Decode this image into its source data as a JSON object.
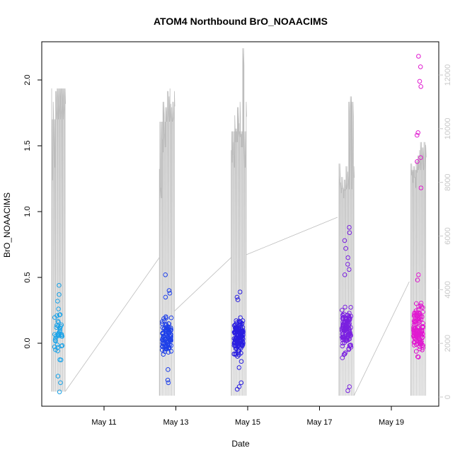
{
  "chart_data": {
    "type": "scatter",
    "title": "ATOM4 Northbound BrO_NOAACIMS",
    "xlabel": "Date",
    "ylabel": "BrO_NOAACIMS",
    "xlim": [
      "2018-05-09",
      "2018-05-20"
    ],
    "ylim": [
      -0.5,
      2.4
    ],
    "y2lim": [
      -500,
      13500
    ],
    "grid": false,
    "colors": {
      "points_start": "#1aa3e8",
      "points_mid": "#1f1fe0",
      "points_late": "#8a22e0",
      "points_end": "#ff1ab8",
      "secondary_line": "#bdbdbd",
      "secondary_axis": "#c8c8c8"
    },
    "x_ticks": [
      {
        "label": "May 11",
        "date": "2018-05-11"
      },
      {
        "label": "May 13",
        "date": "2018-05-13"
      },
      {
        "label": "May 15",
        "date": "2018-05-15"
      },
      {
        "label": "May 17",
        "date": "2018-05-17"
      },
      {
        "label": "May 19",
        "date": "2018-05-19"
      }
    ],
    "y_ticks": [
      {
        "label": "0.0",
        "value": 0.0
      },
      {
        "label": "0.5",
        "value": 0.5
      },
      {
        "label": "1.0",
        "value": 1.0
      },
      {
        "label": "1.5",
        "value": 1.5
      },
      {
        "label": "2.0",
        "value": 2.0
      }
    ],
    "y2_ticks": [
      {
        "label": "0",
        "value": 0
      },
      {
        "label": "2000",
        "value": 2000
      },
      {
        "label": "4000",
        "value": 4000
      },
      {
        "label": "6000",
        "value": 6000
      },
      {
        "label": "8000",
        "value": 8000
      },
      {
        "label": "10000",
        "value": 10000
      },
      {
        "label": "12000",
        "value": 12000
      }
    ],
    "flights": [
      {
        "start": "2018-05-09T13:00",
        "end": "2018-05-09T22:00",
        "n": 38,
        "color": "#1aa3e8",
        "profile": {
          "top": 11500,
          "bottom": 200,
          "spikes": [
            [
              0.08,
              8500
            ],
            [
              0.14,
              11000
            ],
            [
              0.2,
              9000
            ],
            [
              0.35,
              11400
            ],
            [
              0.5,
              11500
            ],
            [
              0.7,
              11500
            ],
            [
              0.9,
              11500
            ]
          ]
        },
        "y_center": 0.05,
        "y_spread": 0.18,
        "y_min": -0.37,
        "y_max": 0.44,
        "highlights": [
          0.44,
          0.37,
          0.32,
          0.26,
          -0.37,
          -0.3,
          -0.25
        ]
      },
      {
        "start": "2018-05-12T13:00",
        "end": "2018-05-12T23:00",
        "n": 95,
        "color": "#1f40e8",
        "profile": {
          "top": 11400,
          "bottom": 50,
          "spikes": [
            [
              0.05,
              8500
            ],
            [
              0.1,
              7800
            ],
            [
              0.18,
              9600
            ],
            [
              0.28,
              11000
            ],
            [
              0.36,
              9800
            ],
            [
              0.45,
              10800
            ],
            [
              0.55,
              11400
            ],
            [
              0.65,
              11200
            ],
            [
              0.72,
              11500
            ],
            [
              0.82,
              10800
            ],
            [
              0.9,
              11000
            ]
          ]
        },
        "y_center": 0.05,
        "y_spread": 0.11,
        "y_min": -0.3,
        "y_max": 0.52,
        "highlights": [
          0.52,
          0.4,
          0.38,
          0.35,
          -0.28,
          -0.3,
          -0.2
        ]
      },
      {
        "start": "2018-05-14T13:00",
        "end": "2018-05-14T23:00",
        "n": 140,
        "color": "#2a1ee0",
        "profile": {
          "top": 11000,
          "bottom": 50,
          "spikes": [
            [
              0.05,
              9200
            ],
            [
              0.12,
              9500
            ],
            [
              0.2,
              9000
            ],
            [
              0.28,
              10500
            ],
            [
              0.35,
              10000
            ],
            [
              0.45,
              10800
            ],
            [
              0.55,
              10200
            ],
            [
              0.62,
              11000
            ],
            [
              0.7,
              9800
            ],
            [
              0.8,
              13000
            ],
            [
              0.9,
              9000
            ]
          ]
        },
        "y_center": 0.05,
        "y_spread": 0.13,
        "y_min": -0.35,
        "y_max": 0.39,
        "highlights": [
          0.39,
          0.35,
          0.33,
          -0.35,
          -0.33,
          -0.3
        ]
      },
      {
        "start": "2018-05-17T13:00",
        "end": "2018-05-17T23:00",
        "n": 110,
        "color": "#7a20e0",
        "profile": {
          "top": 8600,
          "bottom": 50,
          "spikes": [
            [
              0.05,
              8700
            ],
            [
              0.12,
              8000
            ],
            [
              0.2,
              8200
            ],
            [
              0.3,
              7800
            ],
            [
              0.4,
              8100
            ],
            [
              0.5,
              8600
            ],
            [
              0.6,
              8400
            ],
            [
              0.7,
              11000
            ],
            [
              0.8,
              11200
            ],
            [
              0.9,
              11000
            ]
          ]
        },
        "y_center": 0.08,
        "y_spread": 0.15,
        "y_min": -0.36,
        "y_max": 0.88,
        "highlights": [
          0.88,
          0.84,
          0.78,
          0.72,
          0.65,
          0.6,
          0.56,
          0.52,
          -0.36,
          -0.33
        ]
      },
      {
        "start": "2018-05-19T13:00",
        "end": "2018-05-19T23:00",
        "n": 120,
        "color": "#e01ad0",
        "profile": {
          "top": 9400,
          "bottom": 50,
          "spikes": [
            [
              0.05,
              8700
            ],
            [
              0.12,
              8400
            ],
            [
              0.2,
              8600
            ],
            [
              0.3,
              8200
            ],
            [
              0.4,
              8800
            ],
            [
              0.5,
              9000
            ],
            [
              0.6,
              9200
            ],
            [
              0.7,
              9500
            ],
            [
              0.8,
              9300
            ],
            [
              0.9,
              9500
            ]
          ]
        },
        "y_center": 0.1,
        "y_spread": 0.15,
        "y_min": -0.4,
        "y_max": 2.18,
        "highlights": [
          2.18,
          2.1,
          1.99,
          1.95,
          1.6,
          1.58,
          1.41,
          1.38,
          1.18,
          0.52,
          0.48
        ]
      }
    ],
    "transits": [
      {
        "from": "2018-05-09T22:00",
        "from_alt": 200,
        "to": "2018-05-12T13:00",
        "to_alt": 5200
      },
      {
        "from": "2018-05-12T23:00",
        "from_alt": 3200,
        "to": "2018-05-14T13:00",
        "to_alt": 5200
      },
      {
        "from": "2018-05-14T23:00",
        "from_alt": 5300,
        "to": "2018-05-17T12:00",
        "to_alt": 6700
      },
      {
        "from": "2018-05-17T23:00",
        "from_alt": 50,
        "to": "2018-05-19T12:00",
        "to_alt": 4300
      }
    ]
  }
}
